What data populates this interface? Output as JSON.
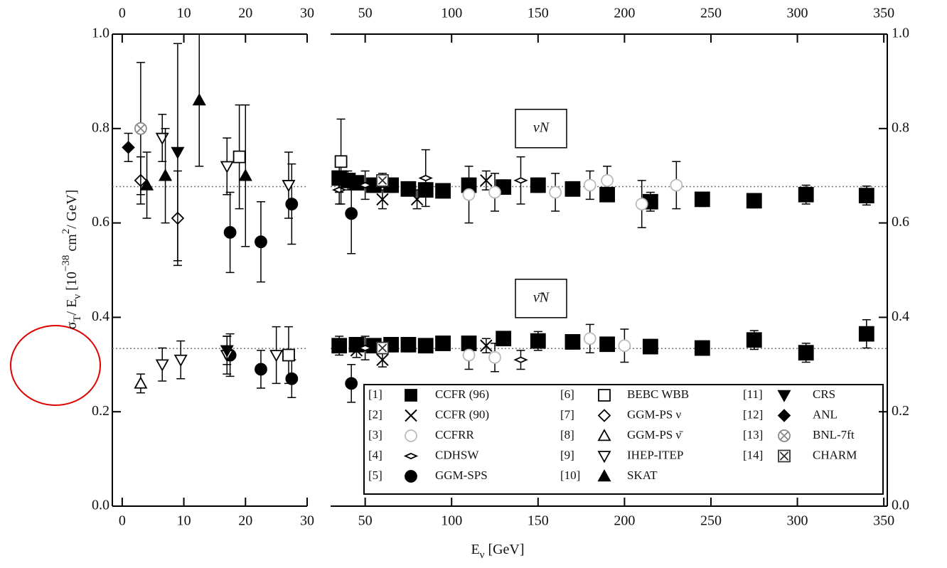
{
  "chart_data": {
    "type": "errorbar",
    "y_label": [
      {
        "text": "σ"
      },
      {
        "text": "T",
        "sub": true
      },
      {
        "text": "/ E"
      },
      {
        "text": "ν",
        "sub": true
      },
      {
        "text": " [10"
      },
      {
        "text": "−38",
        "sup": true
      },
      {
        "text": " cm"
      },
      {
        "text": "2",
        "sup": true
      },
      {
        "text": "/ GeV]"
      }
    ],
    "x_label": [
      {
        "text": "E"
      },
      {
        "text": "ν",
        "sub": true
      },
      {
        "text": " [GeV]"
      }
    ],
    "annotations": [
      {
        "text": "νN",
        "value": 0.8
      },
      {
        "text": "ν̄N",
        "value": 0.44
      }
    ],
    "reference_lines": [
      0.677,
      0.334
    ],
    "ylim": [
      0,
      1.0
    ],
    "yticks": [
      {
        "value": 0,
        "label": "0.0"
      },
      0.2,
      0.4,
      0.6,
      0.8,
      {
        "value": 1.0,
        "label": "1.0"
      }
    ],
    "panels": [
      {
        "xlim": [
          -1.6,
          30
        ],
        "xticks": [
          0,
          10,
          20,
          30
        ]
      },
      {
        "xlim": [
          30,
          352
        ],
        "xticks": [
          50,
          100,
          150,
          200,
          250,
          300,
          350
        ]
      }
    ],
    "series": [
      {
        "ref": "[1]",
        "name": "CCFR (96)",
        "marker": "square",
        "filled": true,
        "color": "#000000",
        "x": [
          35,
          40,
          45,
          55,
          65,
          75,
          85,
          95,
          110,
          130,
          150,
          170,
          190,
          215,
          245,
          275,
          305,
          340,
          35,
          45,
          55,
          65,
          75,
          85,
          95,
          110,
          130,
          150,
          170,
          190,
          215,
          245,
          275,
          305,
          340
        ],
        "values": [
          0.695,
          0.69,
          0.685,
          0.68,
          0.68,
          0.672,
          0.67,
          0.668,
          0.68,
          0.676,
          0.68,
          0.672,
          0.66,
          0.645,
          0.65,
          0.647,
          0.66,
          0.658,
          0.34,
          0.342,
          0.34,
          0.342,
          0.342,
          0.34,
          0.345,
          0.345,
          0.355,
          0.35,
          0.348,
          0.343,
          0.338,
          0.335,
          0.352,
          0.325,
          0.365
        ],
        "errors": [
          0.03,
          0.02,
          0.015,
          0.015,
          0.015,
          0.015,
          0.015,
          0.015,
          0.015,
          0.015,
          0.015,
          0.015,
          0.015,
          0.02,
          0.015,
          0.015,
          0.02,
          0.02,
          0.02,
          0.015,
          0.015,
          0.015,
          0.015,
          0.015,
          0.015,
          0.015,
          0.015,
          0.02,
          0.015,
          0.015,
          0.015,
          0.015,
          0.02,
          0.02,
          0.03
        ]
      },
      {
        "ref": "[2]",
        "name": "CCFR (90)",
        "marker": "cross",
        "filled": false,
        "color": "#000000",
        "x": [
          60,
          80,
          120,
          45,
          60,
          120
        ],
        "values": [
          0.65,
          0.65,
          0.69,
          0.33,
          0.31,
          0.34
        ],
        "errors": [
          0.02,
          0.02,
          0.02,
          0.015,
          0.015,
          0.015
        ]
      },
      {
        "ref": "[3]",
        "name": "CCFRR",
        "marker": "circle",
        "filled": false,
        "color": "#bbbbbb",
        "x": [
          110,
          125,
          160,
          180,
          190,
          210,
          230,
          110,
          125,
          180,
          200
        ],
        "values": [
          0.66,
          0.665,
          0.665,
          0.68,
          0.69,
          0.64,
          0.68,
          0.32,
          0.315,
          0.355,
          0.34
        ],
        "errors": [
          0.06,
          0.04,
          0.04,
          0.03,
          0.03,
          0.05,
          0.05,
          0.03,
          0.03,
          0.03,
          0.035
        ]
      },
      {
        "ref": "[4]",
        "name": "CDHSW",
        "marker": "thin-diamond",
        "filled": false,
        "color": "#000000",
        "x": [
          35,
          50,
          85,
          140,
          50,
          140
        ],
        "values": [
          0.67,
          0.68,
          0.695,
          0.69,
          0.335,
          0.31
        ],
        "errors": [
          0.03,
          0.03,
          0.06,
          0.05,
          0.025,
          0.02
        ]
      },
      {
        "ref": "[5]",
        "name": "GGM-SPS",
        "marker": "circle",
        "filled": true,
        "color": "#000000",
        "x": [
          17.5,
          22.5,
          27.5,
          42,
          17.5,
          22.5,
          27.5,
          42
        ],
        "values": [
          0.58,
          0.56,
          0.64,
          0.62,
          0.32,
          0.29,
          0.27,
          0.26
        ],
        "errors": [
          0.085,
          0.085,
          0.085,
          0.085,
          0.045,
          0.04,
          0.04,
          0.04
        ]
      },
      {
        "ref": "[6]",
        "name": "BEBC WBB",
        "marker": "square",
        "filled": false,
        "color": "#000000",
        "x": [
          19,
          36,
          27
        ],
        "values": [
          0.74,
          0.73,
          0.32
        ],
        "errors": [
          0.11,
          0.09,
          0.06
        ]
      },
      {
        "ref": "[7]",
        "name": "GGM-PS ν",
        "marker": "diamond",
        "filled": false,
        "color": "#000000",
        "x": [
          3,
          9
        ],
        "values": [
          0.69,
          0.61
        ],
        "errors": [
          0.05,
          0.1
        ]
      },
      {
        "ref": "[8]",
        "name": "GGM-PS ν̄",
        "marker": "triangle-up",
        "filled": false,
        "color": "#000000",
        "x": [
          3
        ],
        "values": [
          0.26
        ],
        "errors": [
          0.02
        ]
      },
      {
        "ref": "[9]",
        "name": "IHEP-ITEP",
        "marker": "triangle-down",
        "filled": false,
        "color": "#000000",
        "x": [
          6.5,
          17,
          27,
          6.5,
          9.5,
          17,
          25
        ],
        "values": [
          0.78,
          0.72,
          0.68,
          0.3,
          0.31,
          0.32,
          0.32
        ],
        "errors": [
          0.05,
          0.06,
          0.07,
          0.035,
          0.04,
          0.04,
          0.06
        ]
      },
      {
        "ref": "[10]",
        "name": "SKAT",
        "marker": "triangle-up",
        "filled": true,
        "color": "#000000",
        "x": [
          4,
          7,
          12.5,
          20
        ],
        "values": [
          0.68,
          0.7,
          0.86,
          0.7
        ],
        "errors": [
          0.07,
          0.1,
          0.14,
          0.15
        ]
      },
      {
        "ref": "[11]",
        "name": "CRS",
        "marker": "triangle-down",
        "filled": true,
        "color": "#000000",
        "x": [
          9,
          17
        ],
        "values": [
          0.75,
          0.33
        ],
        "errors": [
          0.23,
          0.03
        ]
      },
      {
        "ref": "[12]",
        "name": "ANL",
        "marker": "diamond",
        "filled": true,
        "color": "#000000",
        "x": [
          1
        ],
        "values": [
          0.76
        ],
        "errors": [
          0.03
        ]
      },
      {
        "ref": "[13]",
        "name": "BNL-7ft",
        "marker": "circle-x",
        "filled": false,
        "color": "#888888",
        "x": [
          3
        ],
        "values": [
          0.8
        ],
        "errors": [
          0.14
        ]
      },
      {
        "ref": "[14]",
        "name": "CHARM",
        "marker": "square-x",
        "filled": false,
        "color": "#333333",
        "x": [
          60,
          60
        ],
        "values": [
          0.69,
          0.335
        ],
        "errors": [
          0.015,
          0.01
        ]
      }
    ]
  }
}
